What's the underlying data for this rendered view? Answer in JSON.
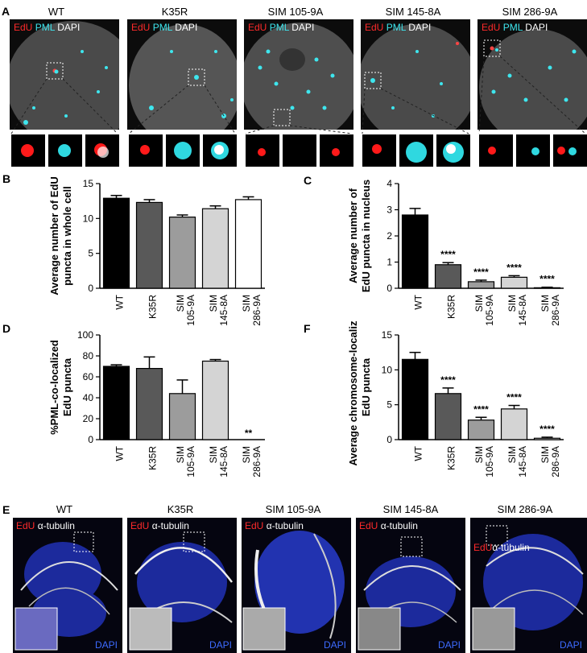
{
  "panel_letters": {
    "a": "A",
    "b": "B",
    "c": "C",
    "d": "D",
    "e": "E",
    "f": "F"
  },
  "columns": [
    "WT",
    "K35R",
    "SIM 105-9A",
    "SIM 145-8A",
    "SIM 286-9A"
  ],
  "stain_a": {
    "edu": "EdU",
    "pml": "PML",
    "dapi": "DAPI"
  },
  "stain_e": {
    "edu": "EdU",
    "tubulin": "α-tubulin",
    "dapi": "DAPI"
  },
  "colors": {
    "edu": "#ff2a2a",
    "pml": "#3ee6ee",
    "dapi": "#3d6bff"
  },
  "chart_data": [
    {
      "id": "B",
      "type": "bar",
      "ylabel": "Average number of EdU puncta in whole cell",
      "categories": [
        "WT",
        "K35R",
        "SIM 105-9A",
        "SIM 145-8A",
        "SIM 286-9A"
      ],
      "values": [
        12.9,
        12.3,
        10.2,
        11.4,
        12.7
      ],
      "errors": [
        0.4,
        0.4,
        0.3,
        0.4,
        0.4
      ],
      "ylim": [
        0,
        15
      ],
      "yticks": [
        "0",
        "5",
        "10",
        "15"
      ],
      "bar_colors": [
        "#000000",
        "#595959",
        "#9c9c9c",
        "#d4d4d4",
        "#ffffff"
      ],
      "annotations": [
        "",
        "",
        "",
        "",
        ""
      ]
    },
    {
      "id": "C",
      "type": "bar",
      "ylabel": "Average number of EdU puncta in nucleus",
      "categories": [
        "WT",
        "K35R",
        "SIM 105-9A",
        "SIM 145-8A",
        "SIM 286-9A"
      ],
      "values": [
        2.8,
        0.9,
        0.25,
        0.42,
        0.02
      ],
      "errors": [
        0.25,
        0.08,
        0.06,
        0.06,
        0.02
      ],
      "ylim": [
        0,
        4
      ],
      "yticks": [
        "0",
        "1",
        "2",
        "3",
        "4"
      ],
      "bar_colors": [
        "#000000",
        "#595959",
        "#9c9c9c",
        "#d4d4d4",
        "#ffffff"
      ],
      "annotations": [
        "",
        "****",
        "****",
        "****",
        "****"
      ]
    },
    {
      "id": "D",
      "type": "bar",
      "ylabel": "%PML-co-localized EdU puncta",
      "categories": [
        "WT",
        "K35R",
        "SIM 105-9A",
        "SIM 145-8A",
        "SIM 286-9A"
      ],
      "values": [
        70,
        68,
        44,
        75,
        0
      ],
      "errors": [
        1.5,
        11,
        13,
        1.5,
        0
      ],
      "ylim": [
        0,
        100
      ],
      "yticks": [
        "0",
        "20",
        "40",
        "60",
        "80",
        "100"
      ],
      "bar_colors": [
        "#000000",
        "#595959",
        "#9c9c9c",
        "#d4d4d4",
        "#ffffff"
      ],
      "annotations": [
        "",
        "",
        "",
        "",
        "**"
      ]
    },
    {
      "id": "F",
      "type": "bar",
      "ylabel": "Average chromosome-localized EdU puncta",
      "categories": [
        "WT",
        "K35R",
        "SIM 105-9A",
        "SIM 145-8A",
        "SIM 286-9A"
      ],
      "values": [
        11.5,
        6.6,
        2.8,
        4.4,
        0.2
      ],
      "errors": [
        1.0,
        0.8,
        0.4,
        0.5,
        0.15
      ],
      "ylim": [
        0,
        15
      ],
      "yticks": [
        "0",
        "5",
        "10",
        "15"
      ],
      "bar_colors": [
        "#000000",
        "#595959",
        "#9c9c9c",
        "#d4d4d4",
        "#ffffff"
      ],
      "annotations": [
        "",
        "****",
        "****",
        "****",
        "****"
      ]
    }
  ]
}
